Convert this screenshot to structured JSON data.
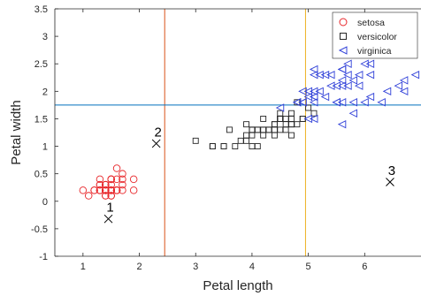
{
  "chart_data": {
    "type": "scatter",
    "xlabel": "Petal length",
    "ylabel": "Petal width",
    "xlim": [
      0.5,
      7
    ],
    "ylim": [
      -1,
      3.5
    ],
    "xticks": [
      1,
      2,
      3,
      4,
      5,
      6
    ],
    "yticks": [
      -1,
      -0.5,
      0,
      0.5,
      1,
      1.5,
      2,
      2.5,
      3,
      3.5
    ],
    "grid": false,
    "legend_position": "top-right",
    "reference_lines": [
      {
        "orientation": "vertical",
        "value": 2.45,
        "color": "#d95319"
      },
      {
        "orientation": "vertical",
        "value": 4.95,
        "color": "#edb120"
      },
      {
        "orientation": "horizontal",
        "value": 1.75,
        "color": "#0072bd"
      }
    ],
    "series": [
      {
        "name": "setosa",
        "marker": "circle",
        "color": "#e8262a",
        "points": [
          [
            1.4,
            0.2
          ],
          [
            1.4,
            0.2
          ],
          [
            1.3,
            0.2
          ],
          [
            1.5,
            0.2
          ],
          [
            1.4,
            0.2
          ],
          [
            1.7,
            0.4
          ],
          [
            1.4,
            0.3
          ],
          [
            1.5,
            0.2
          ],
          [
            1.4,
            0.2
          ],
          [
            1.5,
            0.1
          ],
          [
            1.5,
            0.2
          ],
          [
            1.6,
            0.2
          ],
          [
            1.4,
            0.1
          ],
          [
            1.1,
            0.1
          ],
          [
            1.2,
            0.2
          ],
          [
            1.5,
            0.4
          ],
          [
            1.3,
            0.4
          ],
          [
            1.4,
            0.3
          ],
          [
            1.7,
            0.3
          ],
          [
            1.5,
            0.3
          ],
          [
            1.7,
            0.2
          ],
          [
            1.5,
            0.4
          ],
          [
            1.0,
            0.2
          ],
          [
            1.7,
            0.5
          ],
          [
            1.9,
            0.2
          ],
          [
            1.6,
            0.2
          ],
          [
            1.6,
            0.4
          ],
          [
            1.5,
            0.2
          ],
          [
            1.4,
            0.2
          ],
          [
            1.6,
            0.2
          ],
          [
            1.6,
            0.2
          ],
          [
            1.5,
            0.4
          ],
          [
            1.5,
            0.1
          ],
          [
            1.4,
            0.2
          ],
          [
            1.5,
            0.2
          ],
          [
            1.2,
            0.2
          ],
          [
            1.3,
            0.2
          ],
          [
            1.4,
            0.1
          ],
          [
            1.3,
            0.2
          ],
          [
            1.5,
            0.2
          ],
          [
            1.3,
            0.3
          ],
          [
            1.3,
            0.3
          ],
          [
            1.3,
            0.2
          ],
          [
            1.6,
            0.6
          ],
          [
            1.9,
            0.4
          ],
          [
            1.4,
            0.3
          ],
          [
            1.6,
            0.2
          ],
          [
            1.4,
            0.2
          ],
          [
            1.5,
            0.2
          ],
          [
            1.4,
            0.2
          ]
        ]
      },
      {
        "name": "versicolor",
        "marker": "square",
        "color": "#262626",
        "points": [
          [
            4.7,
            1.4
          ],
          [
            4.5,
            1.5
          ],
          [
            4.9,
            1.5
          ],
          [
            4.0,
            1.3
          ],
          [
            4.6,
            1.5
          ],
          [
            4.5,
            1.3
          ],
          [
            4.7,
            1.6
          ],
          [
            3.3,
            1.0
          ],
          [
            4.6,
            1.3
          ],
          [
            3.9,
            1.4
          ],
          [
            3.5,
            1.0
          ],
          [
            4.2,
            1.5
          ],
          [
            4.0,
            1.0
          ],
          [
            4.7,
            1.4
          ],
          [
            3.6,
            1.3
          ],
          [
            4.4,
            1.4
          ],
          [
            4.5,
            1.5
          ],
          [
            4.1,
            1.0
          ],
          [
            4.5,
            1.5
          ],
          [
            3.9,
            1.1
          ],
          [
            4.8,
            1.8
          ],
          [
            4.0,
            1.3
          ],
          [
            4.9,
            1.5
          ],
          [
            4.7,
            1.2
          ],
          [
            4.3,
            1.3
          ],
          [
            4.4,
            1.4
          ],
          [
            4.8,
            1.4
          ],
          [
            5.0,
            1.7
          ],
          [
            4.5,
            1.5
          ],
          [
            3.5,
            1.0
          ],
          [
            3.8,
            1.1
          ],
          [
            3.7,
            1.0
          ],
          [
            3.9,
            1.2
          ],
          [
            5.1,
            1.6
          ],
          [
            4.5,
            1.5
          ],
          [
            4.5,
            1.6
          ],
          [
            4.7,
            1.5
          ],
          [
            4.4,
            1.3
          ],
          [
            4.1,
            1.3
          ],
          [
            4.0,
            1.3
          ],
          [
            4.4,
            1.2
          ],
          [
            4.6,
            1.4
          ],
          [
            4.0,
            1.2
          ],
          [
            3.3,
            1.0
          ],
          [
            4.2,
            1.3
          ],
          [
            4.2,
            1.2
          ],
          [
            4.2,
            1.3
          ],
          [
            4.3,
            1.3
          ],
          [
            3.0,
            1.1
          ],
          [
            4.1,
            1.3
          ]
        ]
      },
      {
        "name": "virginica",
        "marker": "triangle-left",
        "color": "#3040d8",
        "points": [
          [
            6.0,
            2.5
          ],
          [
            5.1,
            1.9
          ],
          [
            5.9,
            2.1
          ],
          [
            5.6,
            1.8
          ],
          [
            5.8,
            2.2
          ],
          [
            6.6,
            2.1
          ],
          [
            4.5,
            1.7
          ],
          [
            6.3,
            1.8
          ],
          [
            5.8,
            1.8
          ],
          [
            6.1,
            2.5
          ],
          [
            5.1,
            2.0
          ],
          [
            5.3,
            1.9
          ],
          [
            5.5,
            2.1
          ],
          [
            5.0,
            2.0
          ],
          [
            5.1,
            2.4
          ],
          [
            5.3,
            2.3
          ],
          [
            5.5,
            1.8
          ],
          [
            6.7,
            2.2
          ],
          [
            6.9,
            2.3
          ],
          [
            5.0,
            1.5
          ],
          [
            5.7,
            2.3
          ],
          [
            4.9,
            2.0
          ],
          [
            6.7,
            2.0
          ],
          [
            4.9,
            1.8
          ],
          [
            5.7,
            2.1
          ],
          [
            6.0,
            1.8
          ],
          [
            4.8,
            1.8
          ],
          [
            4.9,
            1.8
          ],
          [
            5.6,
            2.1
          ],
          [
            5.8,
            1.6
          ],
          [
            6.1,
            1.9
          ],
          [
            6.4,
            2.0
          ],
          [
            5.6,
            2.2
          ],
          [
            5.1,
            1.5
          ],
          [
            5.6,
            1.4
          ],
          [
            6.1,
            2.3
          ],
          [
            5.6,
            2.4
          ],
          [
            5.5,
            1.8
          ],
          [
            4.8,
            1.8
          ],
          [
            5.4,
            2.1
          ],
          [
            5.6,
            2.4
          ],
          [
            5.1,
            2.3
          ],
          [
            5.1,
            1.9
          ],
          [
            5.9,
            2.3
          ],
          [
            5.7,
            2.5
          ],
          [
            5.2,
            2.3
          ],
          [
            5.0,
            1.9
          ],
          [
            5.2,
            2.0
          ],
          [
            5.4,
            2.3
          ],
          [
            5.1,
            1.8
          ]
        ]
      }
    ],
    "query_points": [
      {
        "label": "1",
        "x": 1.45,
        "y": -0.32,
        "marker": "x"
      },
      {
        "label": "2",
        "x": 2.3,
        "y": 1.05,
        "marker": "x"
      },
      {
        "label": "3",
        "x": 6.45,
        "y": 0.35,
        "marker": "x"
      }
    ]
  }
}
